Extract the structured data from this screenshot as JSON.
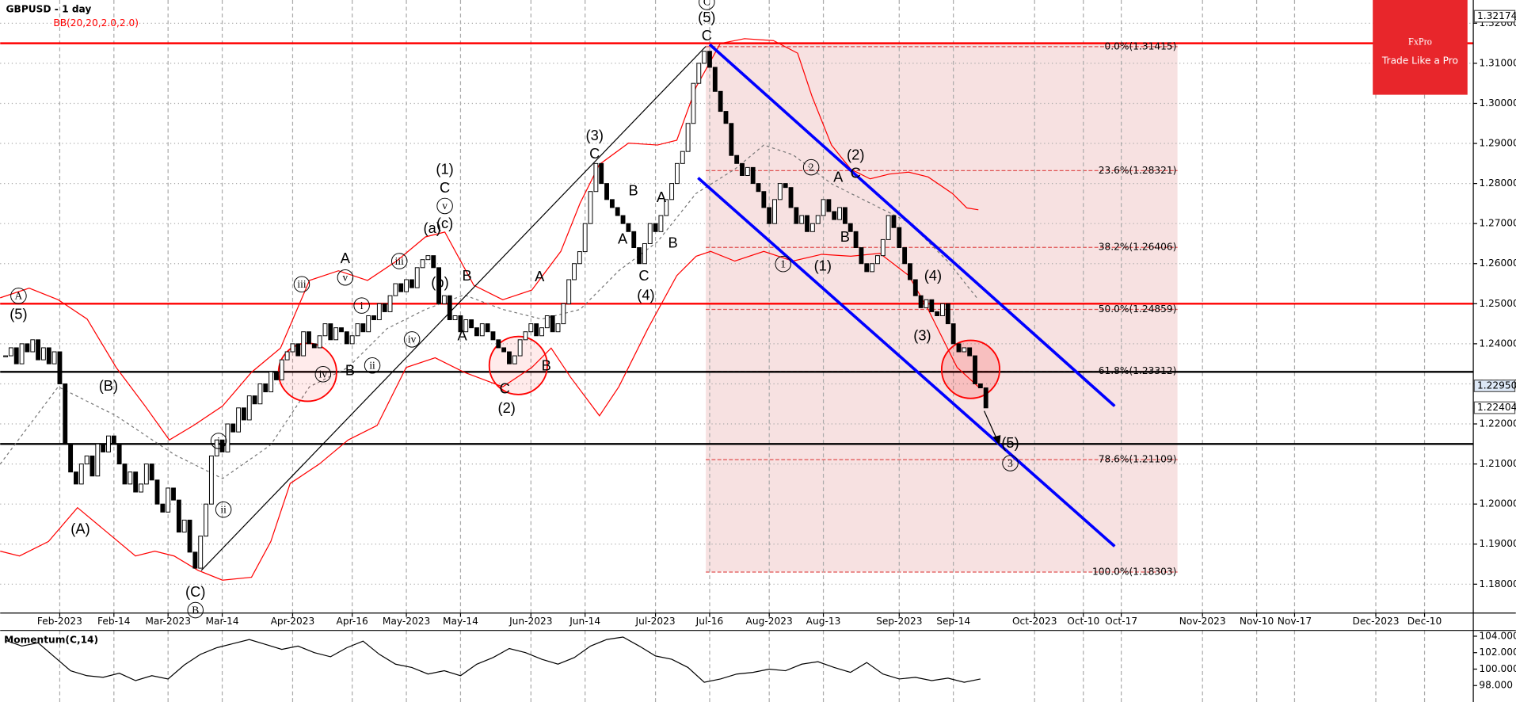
{
  "chart_data": [
    {
      "type": "candlestick",
      "title": "GBPUSD - 1 day",
      "indicator": "BB(20,20,2.0,2.0)",
      "x": [
        0,
        1,
        2,
        3,
        4,
        5,
        6,
        7,
        8,
        9,
        10,
        11,
        12,
        13,
        14,
        15,
        16,
        17,
        18,
        19,
        20,
        21,
        22,
        23,
        24,
        25,
        26,
        27,
        28,
        29,
        30,
        31,
        32,
        33,
        34,
        35,
        36,
        37,
        38,
        39,
        40,
        41,
        42,
        43,
        44,
        45,
        46,
        47,
        48,
        49,
        50,
        51,
        52,
        53,
        54,
        55,
        56,
        57,
        58,
        59,
        60,
        61,
        62,
        63,
        64,
        65,
        66,
        67,
        68,
        69,
        70,
        71,
        72,
        73,
        74,
        75,
        76,
        77,
        78,
        79,
        80,
        81,
        82,
        83,
        84,
        85,
        86,
        87,
        88,
        89,
        90,
        91,
        92,
        93,
        94,
        95,
        96,
        97,
        98,
        99,
        100,
        101,
        102,
        103,
        104,
        105,
        106,
        107,
        108,
        109,
        110,
        111,
        112,
        113,
        114,
        115,
        116,
        117,
        118,
        119,
        120,
        121,
        122,
        123,
        124,
        125,
        126,
        127,
        128,
        129,
        130,
        131,
        132,
        133,
        134,
        135,
        136,
        137,
        138,
        139,
        140,
        141,
        142,
        143,
        144,
        145,
        146,
        147,
        148,
        149,
        150,
        151,
        152,
        153,
        154,
        155,
        156,
        157,
        158,
        159,
        160,
        161,
        162,
        163,
        164,
        165,
        166,
        167,
        168,
        169,
        170,
        171,
        172,
        173,
        174,
        175,
        176,
        177,
        178,
        179,
        180,
        181
      ],
      "close": [
        1.237,
        1.239,
        1.235,
        1.24,
        1.238,
        1.241,
        1.236,
        1.239,
        1.235,
        1.238,
        1.23,
        1.215,
        1.208,
        1.205,
        1.21,
        1.212,
        1.207,
        1.215,
        1.213,
        1.217,
        1.215,
        1.21,
        1.205,
        1.208,
        1.203,
        1.205,
        1.21,
        1.206,
        1.2,
        1.198,
        1.204,
        1.201,
        1.193,
        1.196,
        1.188,
        1.184,
        1.192,
        1.2,
        1.212,
        1.216,
        1.213,
        1.22,
        1.218,
        1.224,
        1.221,
        1.227,
        1.225,
        1.23,
        1.228,
        1.233,
        1.231,
        1.236,
        1.238,
        1.24,
        1.237,
        1.243,
        1.24,
        1.239,
        1.242,
        1.245,
        1.241,
        1.244,
        1.243,
        1.24,
        1.242,
        1.245,
        1.243,
        1.247,
        1.246,
        1.25,
        1.248,
        1.252,
        1.255,
        1.253,
        1.256,
        1.254,
        1.259,
        1.261,
        1.262,
        1.259,
        1.25,
        1.252,
        1.246,
        1.247,
        1.243,
        1.246,
        1.244,
        1.242,
        1.245,
        1.243,
        1.241,
        1.239,
        1.238,
        1.235,
        1.237,
        1.241,
        1.243,
        1.245,
        1.242,
        1.244,
        1.247,
        1.243,
        1.245,
        1.25,
        1.256,
        1.26,
        1.263,
        1.27,
        1.278,
        1.285,
        1.28,
        1.276,
        1.274,
        1.272,
        1.27,
        1.268,
        1.264,
        1.26,
        1.265,
        1.27,
        1.268,
        1.272,
        1.276,
        1.28,
        1.285,
        1.288,
        1.295,
        1.305,
        1.31,
        1.313,
        1.309,
        1.303,
        1.298,
        1.295,
        1.287,
        1.285,
        1.282,
        1.284,
        1.28,
        1.278,
        1.274,
        1.27,
        1.276,
        1.28,
        1.279,
        1.274,
        1.27,
        1.272,
        1.268,
        1.27,
        1.272,
        1.276,
        1.273,
        1.271,
        1.274,
        1.27,
        1.268,
        1.264,
        1.26,
        1.258,
        1.26,
        1.262,
        1.266,
        1.272,
        1.269,
        1.264,
        1.26,
        1.256,
        1.252,
        1.249,
        1.251,
        1.248,
        1.247,
        1.25,
        1.245,
        1.24,
        1.238,
        1.239,
        1.237,
        1.23,
        1.229,
        1.224
      ],
      "up_color": "#ffffff",
      "down_color": "#000000",
      "xlim": [
        -1,
        271
      ],
      "xticks": [
        {
          "value": 10,
          "label": "Feb-2023"
        },
        {
          "value": 20,
          "label": "Feb-14"
        },
        {
          "value": 30,
          "label": "Mar-2023"
        },
        {
          "value": 40,
          "label": "Mar-14"
        },
        {
          "value": 53,
          "label": "Apr-2023"
        },
        {
          "value": 64,
          "label": "Apr-16"
        },
        {
          "value": 74,
          "label": "May-2023"
        },
        {
          "value": 84,
          "label": "May-14"
        },
        {
          "value": 97,
          "label": "Jun-2023"
        },
        {
          "value": 107,
          "label": "Jun-14"
        },
        {
          "value": 120,
          "label": "Jul-2023"
        },
        {
          "value": 130,
          "label": "Jul-16"
        },
        {
          "value": 141,
          "label": "Aug-2023"
        },
        {
          "value": 151,
          "label": "Aug-13"
        },
        {
          "value": 165,
          "label": "Sep-2023"
        },
        {
          "value": 175,
          "label": "Sep-14"
        },
        {
          "value": 190,
          "label": "Oct-2023"
        },
        {
          "value": 199,
          "label": "Oct-10"
        },
        {
          "value": 206,
          "label": "Oct-17"
        },
        {
          "value": 221,
          "label": "Nov-2023"
        },
        {
          "value": 231,
          "label": "Nov-10"
        },
        {
          "value": 238,
          "label": "Nov-17"
        },
        {
          "value": 253,
          "label": "Dec-2023"
        },
        {
          "value": 262,
          "label": "Dec-10"
        }
      ],
      "ylim": [
        1.1728,
        1.3258
      ],
      "yticks": [
        {
          "value": 1.18,
          "label": "1.18000"
        },
        {
          "value": 1.19,
          "label": "1.19000"
        },
        {
          "value": 1.2,
          "label": "1.20000"
        },
        {
          "value": 1.21,
          "label": "1.21000"
        },
        {
          "value": 1.22,
          "label": "1.22000"
        },
        {
          "value": 1.23,
          "label": "1.23000"
        },
        {
          "value": 1.24,
          "label": "1.24000"
        },
        {
          "value": 1.25,
          "label": "1.25000"
        },
        {
          "value": 1.26,
          "label": "1.26000"
        },
        {
          "value": 1.27,
          "label": "1.27000"
        },
        {
          "value": 1.28,
          "label": "1.28000"
        },
        {
          "value": 1.29,
          "label": "1.29000"
        },
        {
          "value": 1.3,
          "label": "1.30000"
        },
        {
          "value": 1.31,
          "label": "1.31000"
        },
        {
          "value": 1.32,
          "label": "1.32000"
        }
      ],
      "price_labels": [
        {
          "value": 1.32174,
          "label": "1.32174"
        },
        {
          "value": 1.2295,
          "label": "1.22950"
        },
        {
          "value": 1.22404,
          "label": "1.22404"
        }
      ],
      "grid": true,
      "levels": [
        {
          "value": 1.315,
          "color": "#ff0000"
        },
        {
          "value": 1.25,
          "color": "#ff0000"
        },
        {
          "value": 1.233,
          "color": "#000000"
        },
        {
          "value": 1.215,
          "color": "#000000"
        }
      ],
      "fibonacci": [
        {
          "value": 1.31415,
          "label": "0.0%(1.31415)"
        },
        {
          "value": 1.28321,
          "label": "23.6%(1.28321)"
        },
        {
          "value": 1.26406,
          "label": "38.2%(1.26406)"
        },
        {
          "value": 1.24859,
          "label": "50.0%(1.24859)"
        },
        {
          "value": 1.23312,
          "label": "61.8%(1.23312)"
        },
        {
          "value": 1.21109,
          "label": "78.6%(1.21109)"
        },
        {
          "value": 1.18303,
          "label": "100.0%(1.18303)"
        }
      ],
      "annotations": [
        {
          "text": "C",
          "circled": true
        },
        {
          "text": "(5)"
        },
        {
          "text": "C"
        },
        {
          "text": "(3)"
        },
        {
          "text": "C"
        },
        {
          "text": "B"
        },
        {
          "text": "A"
        },
        {
          "text": "A"
        },
        {
          "text": "B"
        },
        {
          "text": "C"
        },
        {
          "text": "(4)"
        },
        {
          "text": "(1)"
        },
        {
          "text": "C"
        },
        {
          "text": "v",
          "circled": true
        },
        {
          "text": "(a)"
        },
        {
          "text": "(c)"
        },
        {
          "text": "(b)"
        },
        {
          "text": "iii",
          "circled": true
        },
        {
          "text": "iii",
          "circled": true
        },
        {
          "text": "A"
        },
        {
          "text": "v",
          "circled": true
        },
        {
          "text": "i",
          "circled": true
        },
        {
          "text": "iv",
          "circled": true
        },
        {
          "text": "B"
        },
        {
          "text": "A"
        },
        {
          "text": "iv",
          "circled": true
        },
        {
          "text": "B"
        },
        {
          "text": "ii",
          "circled": true
        },
        {
          "text": "A"
        },
        {
          "text": "B"
        },
        {
          "text": "C"
        },
        {
          "text": "(2)"
        },
        {
          "text": "A",
          "circled": true
        },
        {
          "text": "(5)"
        },
        {
          "text": "(B)"
        },
        {
          "text": "(A)"
        },
        {
          "text": "i",
          "circled": true
        },
        {
          "text": "ii",
          "circled": true
        },
        {
          "text": "(C)"
        },
        {
          "text": "B",
          "circled": true
        },
        {
          "text": "2",
          "circled": true
        },
        {
          "text": "(2)"
        },
        {
          "text": "A"
        },
        {
          "text": "C"
        },
        {
          "text": "B"
        },
        {
          "text": "1",
          "circled": true
        },
        {
          "text": "(1)"
        },
        {
          "text": "(4)"
        },
        {
          "text": "(3)"
        },
        {
          "text": "(5)"
        },
        {
          "text": "3",
          "circled": true
        }
      ]
    },
    {
      "type": "line",
      "title": "Momentum(C,14)",
      "color": "#000000",
      "x": [
        0,
        3,
        6,
        9,
        12,
        15,
        18,
        21,
        24,
        27,
        30,
        33,
        36,
        39,
        42,
        45,
        48,
        51,
        54,
        57,
        60,
        63,
        66,
        69,
        72,
        75,
        78,
        81,
        84,
        87,
        90,
        93,
        96,
        99,
        102,
        105,
        108,
        111,
        114,
        117,
        120,
        123,
        126,
        129,
        132,
        135,
        138,
        141,
        144,
        147,
        150,
        153,
        156,
        159,
        162,
        165,
        168,
        171,
        174,
        177,
        180
      ],
      "values": [
        103.5,
        102.8,
        103.2,
        101.5,
        99.8,
        99.2,
        99.0,
        99.5,
        98.6,
        99.2,
        98.8,
        100.5,
        101.8,
        102.6,
        103.1,
        103.6,
        103.0,
        102.4,
        102.8,
        102.0,
        101.5,
        102.6,
        103.4,
        101.8,
        100.6,
        100.2,
        99.4,
        99.8,
        99.2,
        100.6,
        101.4,
        102.5,
        102.0,
        101.2,
        100.6,
        101.4,
        102.8,
        103.6,
        103.9,
        102.8,
        101.6,
        101.2,
        100.2,
        98.4,
        98.8,
        99.4,
        99.6,
        100.0,
        99.8,
        100.6,
        100.9,
        100.2,
        99.6,
        100.8,
        99.4,
        98.8,
        99.0,
        98.6,
        98.9,
        98.4,
        98.8
      ],
      "xlim": [
        -1,
        271
      ],
      "ylim": [
        96,
        104.7
      ],
      "yticks": [
        {
          "value": 98,
          "label": "98.000"
        },
        {
          "value": 100,
          "label": "100.000"
        },
        {
          "value": 102,
          "label": "102.000"
        },
        {
          "value": 104,
          "label": "104.000"
        }
      ]
    }
  ],
  "logo": {
    "brand": "FxPro",
    "tagline": "Trade Like a Pro"
  }
}
